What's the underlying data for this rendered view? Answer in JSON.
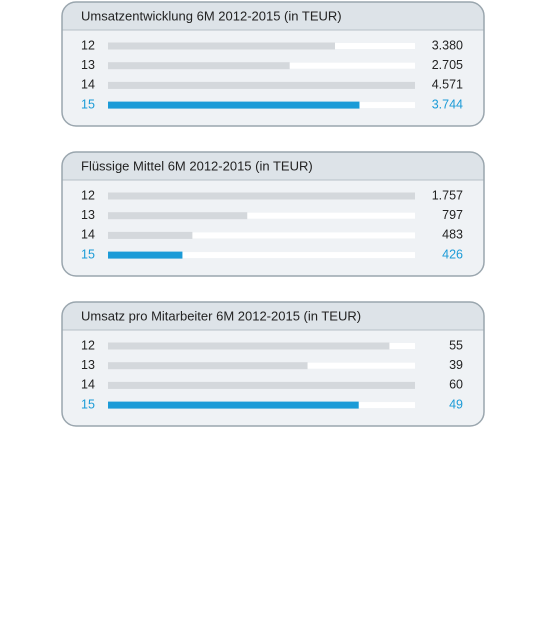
{
  "chart_data": [
    {
      "type": "bar",
      "title": "Umsatzentwicklung 6M 2012-2015 (in TEUR)",
      "categories": [
        "12",
        "13",
        "14",
        "15"
      ],
      "values": [
        3380,
        2705,
        4571,
        3744
      ],
      "value_labels": [
        "3.380",
        "2.705",
        "4.571",
        "3.744"
      ],
      "xlim": [
        0,
        4571
      ],
      "color": "#d4d8dc",
      "highlight": 3,
      "highlight_color": "#1b9bd7"
    },
    {
      "type": "bar",
      "title": "Flüssige Mittel 6M 2012-2015 (in TEUR)",
      "categories": [
        "12",
        "13",
        "14",
        "15"
      ],
      "values": [
        1757,
        797,
        483,
        426
      ],
      "value_labels": [
        "1.757",
        "797",
        "483",
        "426"
      ],
      "xlim": [
        0,
        1757
      ],
      "color": "#d4d8dc",
      "highlight": 3,
      "highlight_color": "#1b9bd7"
    },
    {
      "type": "bar",
      "title": "Umsatz pro Mitarbeiter 6M 2012-2015 (in TEUR)",
      "categories": [
        "12",
        "13",
        "14",
        "15"
      ],
      "values": [
        55,
        39,
        60,
        49
      ],
      "xlim": [
        0,
        60
      ],
      "color": "#d4d8dc",
      "highlight": 3,
      "highlight_color": "#1b9bd7"
    }
  ]
}
